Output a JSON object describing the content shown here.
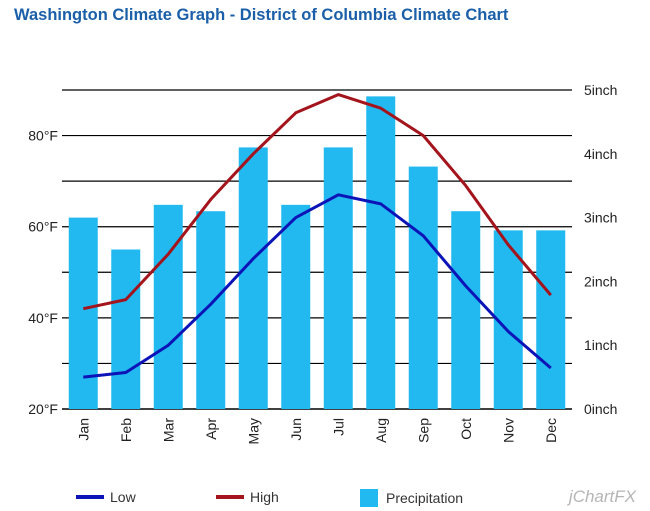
{
  "title": "Washington Climate Graph - District of Columbia Climate Chart",
  "brand": "jChartFX",
  "colors": {
    "low": "#0c14b8",
    "high": "#a3141c",
    "precipitation": "#22b8f0",
    "grid": "#000000",
    "axis_text": "#222222"
  },
  "legend": {
    "low": "Low",
    "high": "High",
    "precipitation": "Precipitation"
  },
  "chart_data": {
    "type": "bar+line",
    "title": "Washington Climate Graph - District of Columbia Climate Chart",
    "categories": [
      "Jan",
      "Feb",
      "Mar",
      "Apr",
      "May",
      "Jun",
      "Jul",
      "Aug",
      "Sep",
      "Oct",
      "Nov",
      "Dec"
    ],
    "series": [
      {
        "name": "Precipitation",
        "type": "bar",
        "axis": "right",
        "unit": "inch",
        "values": [
          3.0,
          2.5,
          3.2,
          3.1,
          4.1,
          3.2,
          4.1,
          4.9,
          3.8,
          3.1,
          2.8,
          2.8
        ]
      },
      {
        "name": "Low",
        "type": "line",
        "axis": "left",
        "unit": "°F",
        "values": [
          27,
          28,
          34,
          43,
          53,
          62,
          67,
          65,
          58,
          47,
          37,
          29
        ]
      },
      {
        "name": "High",
        "type": "line",
        "axis": "left",
        "unit": "°F",
        "values": [
          42,
          44,
          54,
          66,
          76,
          85,
          89,
          86,
          80,
          69,
          56,
          45
        ]
      }
    ],
    "y_left": {
      "min": 20,
      "max": 90,
      "ticks": [
        20,
        40,
        60,
        80
      ],
      "tick_labels": [
        "20°F",
        "40°F",
        "60°F",
        "80°F"
      ]
    },
    "y_right": {
      "min": 0,
      "max": 5,
      "ticks": [
        0,
        1,
        2,
        3,
        4,
        5
      ],
      "tick_labels": [
        "0inch",
        "1inch",
        "2inch",
        "3inch",
        "4inch",
        "5inch"
      ]
    },
    "grid": true,
    "legend_position": "bottom"
  }
}
